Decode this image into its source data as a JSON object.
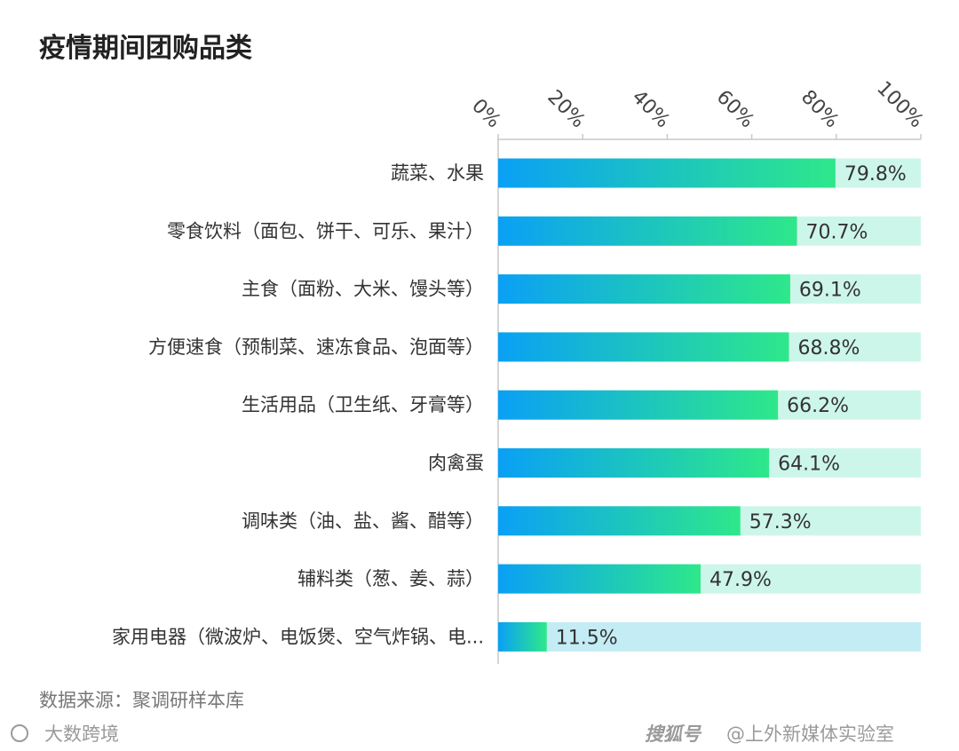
{
  "chart_data": {
    "type": "bar",
    "orientation": "horizontal",
    "title": "疫情期间团购品类",
    "categories": [
      "蔬菜、水果",
      "零食饮料（面包、饼干、可乐、果汁）",
      "主食（面粉、大米、馒头等）",
      "方便速食（预制菜、速冻食品、泡面等）",
      "生活用品（卫生纸、牙膏等）",
      "肉禽蛋",
      "调味类（油、盐、酱、醋等）",
      "辅料类（葱、姜、蒜）",
      "家用电器（微波炉、电饭煲、空气炸锅、电..."
    ],
    "values": [
      79.8,
      70.7,
      69.1,
      68.8,
      66.2,
      64.1,
      57.3,
      47.9,
      11.5
    ],
    "value_labels": [
      "79.8%",
      "70.7%",
      "69.1%",
      "68.8%",
      "66.2%",
      "64.1%",
      "57.3%",
      "47.9%",
      "11.5%"
    ],
    "xlim": [
      0,
      100
    ],
    "x_ticks": [
      "0%",
      "20%",
      "40%",
      "60%",
      "80%",
      "100%"
    ],
    "x_tick_values": [
      0,
      20,
      40,
      60,
      80,
      100
    ],
    "axis_position": "top",
    "grid": false
  },
  "colors": {
    "bar_start": "#0aa0f5",
    "bar_end": "#2ee88a",
    "track": "#cdf6ea",
    "track_last": "#c4ecf5"
  },
  "footer": {
    "source": "数据来源：聚调研样本库",
    "watermark_left": "大数跨境",
    "watermark_right_brand": "搜狐号",
    "watermark_right_author": "@上外新媒体实验室"
  }
}
